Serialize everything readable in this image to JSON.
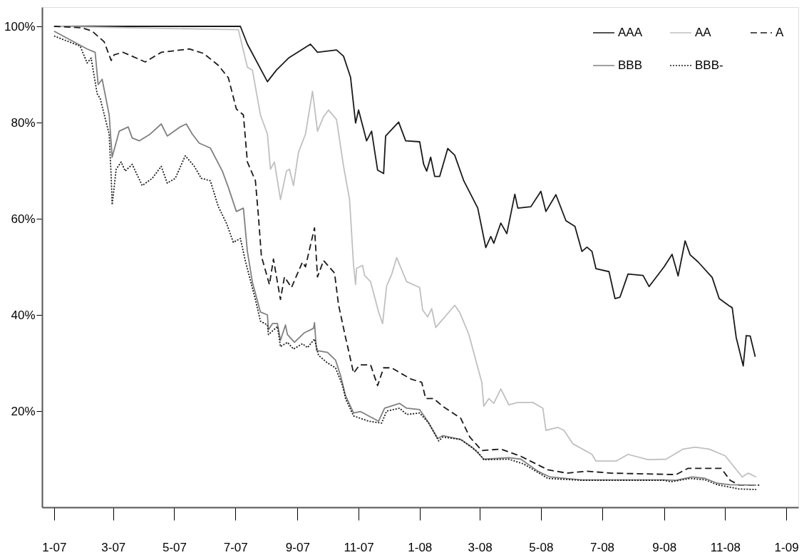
{
  "chart_data": {
    "type": "line",
    "xlim": [
      "2006-12-20",
      "2009-01-13"
    ],
    "ylim": [
      0,
      104
    ],
    "xticks": [
      {
        "value": "2007-01-01",
        "label": "1-07"
      },
      {
        "value": "2007-03-01",
        "label": "3-07"
      },
      {
        "value": "2007-05-01",
        "label": "5-07"
      },
      {
        "value": "2007-07-01",
        "label": "7-07"
      },
      {
        "value": "2007-09-01",
        "label": "9-07"
      },
      {
        "value": "2007-11-01",
        "label": "11-07"
      },
      {
        "value": "2008-01-01",
        "label": "1-08"
      },
      {
        "value": "2008-03-01",
        "label": "3-08"
      },
      {
        "value": "2008-05-01",
        "label": "5-08"
      },
      {
        "value": "2008-07-01",
        "label": "7-08"
      },
      {
        "value": "2008-09-01",
        "label": "9-08"
      },
      {
        "value": "2008-11-01",
        "label": "11-08"
      },
      {
        "value": "2009-01-01",
        "label": "1-09"
      }
    ],
    "yticks": [
      {
        "value": 20,
        "label": "20%"
      },
      {
        "value": 40,
        "label": "40%"
      },
      {
        "value": 60,
        "label": "60%"
      },
      {
        "value": 80,
        "label": "80%"
      },
      {
        "value": 100,
        "label": "100%"
      }
    ],
    "grid": false,
    "legend": "top right",
    "marker": "none",
    "series": [
      {
        "name": "AAA",
        "color": "#1a1a1a",
        "line_style": "solid",
        "x": [
          "2007-01-01",
          "2007-07-06",
          "2007-07-13",
          "2007-08-02",
          "2007-08-11",
          "2007-08-23",
          "2007-09-14",
          "2007-09-21",
          "2007-10-10",
          "2007-10-17",
          "2007-10-24",
          "2007-10-29",
          "2007-11-01",
          "2007-11-09",
          "2007-11-14",
          "2007-11-20",
          "2007-11-26",
          "2007-11-28",
          "2007-12-11",
          "2007-12-18",
          "2008-01-01",
          "2008-01-05",
          "2008-01-08",
          "2008-01-12",
          "2008-01-16",
          "2008-01-21",
          "2008-01-29",
          "2008-02-05",
          "2008-02-14",
          "2008-02-28",
          "2008-03-07",
          "2008-03-12",
          "2008-03-15",
          "2008-03-22",
          "2008-03-28",
          "2008-04-05",
          "2008-04-08",
          "2008-04-21",
          "2008-05-01",
          "2008-05-06",
          "2008-05-16",
          "2008-05-26",
          "2008-06-04",
          "2008-06-11",
          "2008-06-16",
          "2008-06-21",
          "2008-06-25",
          "2008-07-08",
          "2008-07-14",
          "2008-07-19",
          "2008-07-27",
          "2008-08-11",
          "2008-08-17",
          "2008-09-01",
          "2008-09-09",
          "2008-09-15",
          "2008-09-22",
          "2008-09-27",
          "2008-10-05",
          "2008-10-19",
          "2008-10-26",
          "2008-11-05",
          "2008-11-08",
          "2008-11-12",
          "2008-11-19",
          "2008-11-22",
          "2008-11-26",
          "2008-12-01"
        ],
        "values": [
          100,
          100,
          96.3,
          88.5,
          90.9,
          93.4,
          96.3,
          94.6,
          95.1,
          93.8,
          89.4,
          79.9,
          82.6,
          76.2,
          78.2,
          70.1,
          69.4,
          77.2,
          80.1,
          76.2,
          76.0,
          71.3,
          69.9,
          72.8,
          68.8,
          68.8,
          74.6,
          73.2,
          67.9,
          62.2,
          54.0,
          56.3,
          54.9,
          59.1,
          56.9,
          65.1,
          62.2,
          62.5,
          65.7,
          61.5,
          65.0,
          59.6,
          58.4,
          53.2,
          54.1,
          53.2,
          49.6,
          49.0,
          43.4,
          43.7,
          48.5,
          48.2,
          45.9,
          50.0,
          52.6,
          48.1,
          55.4,
          52.5,
          51.0,
          47.8,
          43.4,
          41.9,
          41.5,
          35.3,
          29.4,
          35.7,
          35.6,
          31.3
        ]
      },
      {
        "name": "AA",
        "color": "#c0c0c0",
        "line_style": "solid",
        "x": [
          "2007-01-01",
          "2007-07-04",
          "2007-07-13",
          "2007-07-18",
          "2007-07-26",
          "2007-08-02",
          "2007-08-05",
          "2007-08-09",
          "2007-08-15",
          "2007-08-21",
          "2007-08-24",
          "2007-08-28",
          "2007-09-02",
          "2007-09-09",
          "2007-09-16",
          "2007-09-21",
          "2007-09-27",
          "2007-10-02",
          "2007-10-10",
          "2007-10-17",
          "2007-10-23",
          "2007-10-27",
          "2007-10-29",
          "2007-10-30",
          "2007-11-05",
          "2007-11-07",
          "2007-11-13",
          "2007-11-21",
          "2007-11-25",
          "2007-11-29",
          "2007-12-04",
          "2007-12-09",
          "2007-12-19",
          "2008-01-01",
          "2008-01-04",
          "2008-01-09",
          "2008-01-13",
          "2008-01-17",
          "2008-02-05",
          "2008-02-10",
          "2008-02-19",
          "2008-03-03",
          "2008-03-05",
          "2008-03-10",
          "2008-03-15",
          "2008-03-22",
          "2008-03-30",
          "2008-04-08",
          "2008-04-23",
          "2008-05-03",
          "2008-05-06",
          "2008-05-18",
          "2008-05-24",
          "2008-06-02",
          "2008-06-21",
          "2008-06-25",
          "2008-07-15",
          "2008-07-27",
          "2008-08-16",
          "2008-09-03",
          "2008-09-20",
          "2008-10-02",
          "2008-10-16",
          "2008-11-01",
          "2008-11-18",
          "2008-11-24",
          "2008-12-02"
        ],
        "values": [
          100,
          99.3,
          91.5,
          90.9,
          81.6,
          77.6,
          70.3,
          71.8,
          64.0,
          69.9,
          70.3,
          66.9,
          73.8,
          77.6,
          86.5,
          78.2,
          81.2,
          82.6,
          80.6,
          70.9,
          64.0,
          50.3,
          46.3,
          49.7,
          50.3,
          48.2,
          46.9,
          40.6,
          38.2,
          46.0,
          48.4,
          51.9,
          46.9,
          45.7,
          41.0,
          39.6,
          41.3,
          37.4,
          42.0,
          40.5,
          36.0,
          26.0,
          21.0,
          22.6,
          21.6,
          24.6,
          21.3,
          21.8,
          21.8,
          20.6,
          16.0,
          16.6,
          16.0,
          13.2,
          11.0,
          9.6,
          9.6,
          11.0,
          9.9,
          10.0,
          12.1,
          12.5,
          12.1,
          10.7,
          6.3,
          7.1,
          6.3
        ]
      },
      {
        "name": "A",
        "color": "#1a1a1a",
        "line_style": "dashed",
        "x": [
          "2007-01-01",
          "2007-01-29",
          "2007-02-08",
          "2007-02-20",
          "2007-02-27",
          "2007-03-02",
          "2007-03-11",
          "2007-04-02",
          "2007-04-18",
          "2007-05-16",
          "2007-05-30",
          "2007-06-14",
          "2007-06-24",
          "2007-07-02",
          "2007-07-09",
          "2007-07-13",
          "2007-07-21",
          "2007-07-24",
          "2007-07-27",
          "2007-08-04",
          "2007-08-08",
          "2007-08-15",
          "2007-08-19",
          "2007-08-26",
          "2007-09-06",
          "2007-09-09",
          "2007-09-18",
          "2007-09-21",
          "2007-09-27",
          "2007-10-08",
          "2007-10-12",
          "2007-10-19",
          "2007-10-22",
          "2007-10-27",
          "2007-11-02",
          "2007-11-13",
          "2007-11-20",
          "2007-11-26",
          "2007-12-04",
          "2007-12-17",
          "2007-12-24",
          "2008-01-03",
          "2008-01-07",
          "2008-01-15",
          "2008-01-24",
          "2008-02-11",
          "2008-02-20",
          "2008-03-03",
          "2008-03-22",
          "2008-04-11",
          "2008-05-08",
          "2008-05-27",
          "2008-06-16",
          "2008-07-10",
          "2008-09-13",
          "2008-09-25",
          "2008-10-28",
          "2008-11-06",
          "2008-11-15",
          "2008-12-05"
        ],
        "values": [
          100,
          99.7,
          99.0,
          96.8,
          92.9,
          94.1,
          94.6,
          92.6,
          94.6,
          95.3,
          94.4,
          91.9,
          89.3,
          82.8,
          81.6,
          71.8,
          67.9,
          60.6,
          52.2,
          46.3,
          51.6,
          43.2,
          47.9,
          45.7,
          51.0,
          50.0,
          58.1,
          47.9,
          51.3,
          48.7,
          42.1,
          35.3,
          32.6,
          27.9,
          29.6,
          29.6,
          25.3,
          29.0,
          29.0,
          27.4,
          26.6,
          26.0,
          22.6,
          22.6,
          21.0,
          18.5,
          14.6,
          11.8,
          12.1,
          10.6,
          7.8,
          7.1,
          7.5,
          7.1,
          6.8,
          8.1,
          8.1,
          5.6,
          4.6,
          4.6
        ]
      },
      {
        "name": "BBB",
        "color": "#808080",
        "line_style": "solid",
        "x": [
          "2007-01-01",
          "2007-02-03",
          "2007-02-11",
          "2007-02-14",
          "2007-02-18",
          "2007-02-25",
          "2007-02-28",
          "2007-03-07",
          "2007-03-16",
          "2007-03-20",
          "2007-03-27",
          "2007-04-07",
          "2007-04-18",
          "2007-04-24",
          "2007-05-07",
          "2007-05-13",
          "2007-05-19",
          "2007-05-26",
          "2007-06-06",
          "2007-06-18",
          "2007-06-24",
          "2007-07-02",
          "2007-07-09",
          "2007-07-13",
          "2007-07-18",
          "2007-07-26",
          "2007-08-02",
          "2007-08-03",
          "2007-08-07",
          "2007-08-12",
          "2007-08-15",
          "2007-08-20",
          "2007-08-22",
          "2007-08-29",
          "2007-09-08",
          "2007-09-17",
          "2007-09-18",
          "2007-09-20",
          "2007-10-01",
          "2007-10-09",
          "2007-10-14",
          "2007-10-19",
          "2007-10-27",
          "2007-11-03",
          "2007-11-11",
          "2007-11-21",
          "2007-11-27",
          "2007-12-12",
          "2007-12-19",
          "2008-01-01",
          "2008-01-09",
          "2008-01-19",
          "2008-01-24",
          "2008-02-11",
          "2008-02-23",
          "2008-03-05",
          "2008-03-30",
          "2008-04-11",
          "2008-04-28",
          "2008-05-10",
          "2008-06-11",
          "2008-09-01",
          "2008-09-13",
          "2008-09-29",
          "2008-10-12",
          "2008-10-24",
          "2008-11-06",
          "2008-12-02"
        ],
        "values": [
          99,
          95.3,
          94.6,
          87.9,
          89.0,
          81.6,
          72.8,
          78.2,
          79.1,
          76.8,
          76.2,
          77.6,
          79.7,
          77.2,
          79.1,
          79.7,
          77.6,
          75.7,
          74.7,
          69.9,
          66.5,
          61.5,
          62.2,
          53.2,
          46.8,
          40.6,
          40.0,
          36.9,
          38.2,
          38.2,
          34.7,
          37.9,
          35.9,
          34.3,
          36.3,
          37.2,
          38.4,
          32.6,
          32.2,
          30.6,
          27.4,
          23.2,
          19.6,
          19.9,
          19.0,
          17.9,
          20.6,
          21.6,
          20.6,
          20.3,
          17.9,
          14.3,
          14.9,
          14.1,
          12.4,
          10.0,
          10.3,
          10.0,
          7.5,
          6.3,
          5.7,
          5.7,
          5.6,
          6.3,
          6.0,
          5.0,
          4.7,
          4.6
        ]
      },
      {
        "name": "BBB-",
        "color": "#1a1a1a",
        "line_style": "dotted",
        "x": [
          "2007-01-01",
          "2007-01-27",
          "2007-02-03",
          "2007-02-07",
          "2007-02-13",
          "2007-02-16",
          "2007-02-25",
          "2007-02-27",
          "2007-02-28",
          "2007-03-04",
          "2007-03-09",
          "2007-03-13",
          "2007-03-20",
          "2007-03-30",
          "2007-04-09",
          "2007-04-18",
          "2007-04-24",
          "2007-05-02",
          "2007-05-12",
          "2007-05-21",
          "2007-05-28",
          "2007-06-06",
          "2007-06-14",
          "2007-06-22",
          "2007-06-29",
          "2007-07-06",
          "2007-07-11",
          "2007-07-21",
          "2007-07-26",
          "2007-08-02",
          "2007-08-03",
          "2007-08-12",
          "2007-08-15",
          "2007-08-22",
          "2007-08-28",
          "2007-09-06",
          "2007-09-11",
          "2007-09-18",
          "2007-09-22",
          "2007-10-01",
          "2007-10-09",
          "2007-10-16",
          "2007-10-19",
          "2007-10-27",
          "2007-11-11",
          "2007-11-24",
          "2007-11-29",
          "2007-12-12",
          "2007-12-19",
          "2008-01-01",
          "2008-01-10",
          "2008-01-20",
          "2008-01-24",
          "2008-02-11",
          "2008-02-28",
          "2008-03-05",
          "2008-03-30",
          "2008-04-14",
          "2008-05-08",
          "2008-06-11",
          "2008-09-01",
          "2008-09-08",
          "2008-09-27",
          "2008-10-12",
          "2008-10-24",
          "2008-11-15",
          "2008-12-02"
        ],
        "values": [
          98,
          95.9,
          92.4,
          93.4,
          86.0,
          85.0,
          77.6,
          68.8,
          62.9,
          70.3,
          71.8,
          69.9,
          71.3,
          66.9,
          68.4,
          70.9,
          67.4,
          68.4,
          73.1,
          70.9,
          68.4,
          67.9,
          62.5,
          59.1,
          55.1,
          55.9,
          51.2,
          43.2,
          38.7,
          37.9,
          35.9,
          37.6,
          33.4,
          34.3,
          32.9,
          34.0,
          33.2,
          35.0,
          31.6,
          30.0,
          29.0,
          25.3,
          22.6,
          19.0,
          17.9,
          17.5,
          20.0,
          20.6,
          19.3,
          19.6,
          17.5,
          13.8,
          14.6,
          14.1,
          11.5,
          9.9,
          10.0,
          9.0,
          6.0,
          5.6,
          5.6,
          5.3,
          6.0,
          5.7,
          4.7,
          3.8,
          3.7
        ]
      }
    ]
  }
}
